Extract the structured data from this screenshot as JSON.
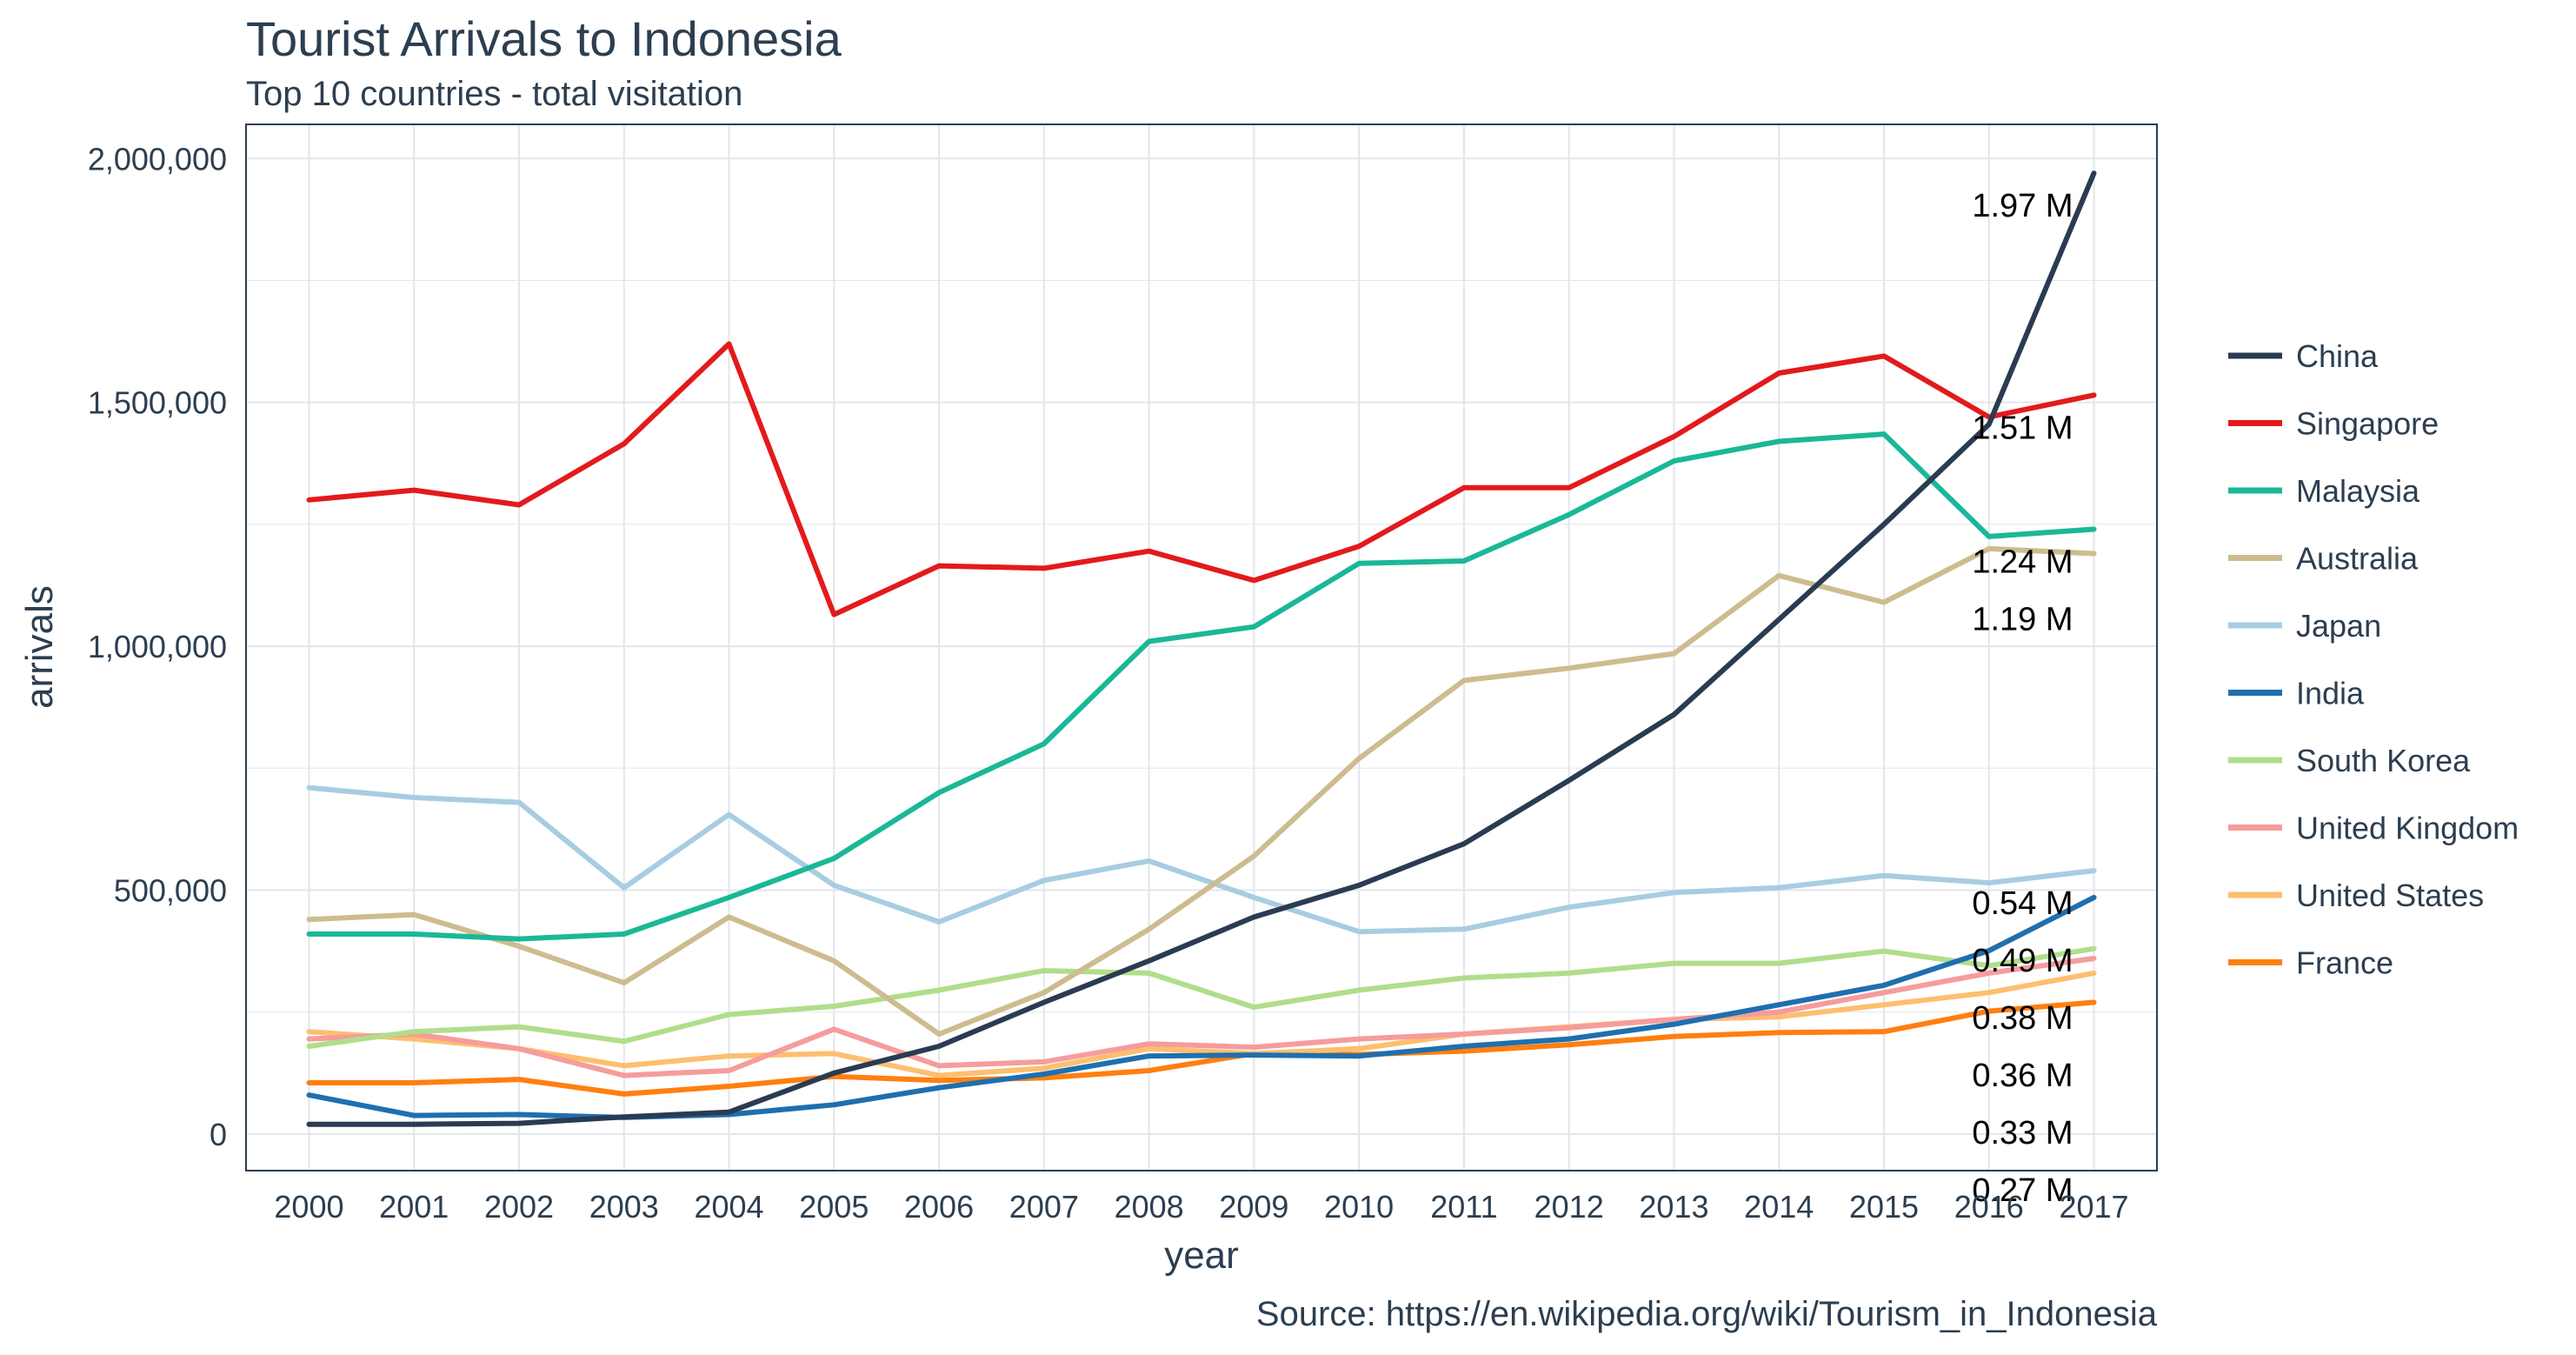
{
  "colors": {
    "text": "#2c3e50",
    "grid": "#e3e6ea",
    "panel_border": "#2c3e50",
    "end_label": "#000000"
  },
  "chart_data": {
    "type": "line",
    "title": "Tourist Arrivals to Indonesia",
    "subtitle": "Top 10 countries - total visitation",
    "xlabel": "year",
    "ylabel": "arrivals",
    "caption": "Source: https://en.wikipedia.org/wiki/Tourism_in_Indonesia",
    "x": [
      2000,
      2001,
      2002,
      2003,
      2004,
      2005,
      2006,
      2007,
      2008,
      2009,
      2010,
      2011,
      2012,
      2013,
      2014,
      2015,
      2016,
      2017
    ],
    "x_tick_labels": [
      "2000",
      "2001",
      "2002",
      "2003",
      "2004",
      "2005",
      "2006",
      "2007",
      "2008",
      "2009",
      "2010",
      "2011",
      "2012",
      "2013",
      "2014",
      "2015",
      "2016",
      "2017"
    ],
    "ylim": [
      -75000,
      2070000
    ],
    "y_ticks": [
      0,
      500000,
      1000000,
      1500000,
      2000000
    ],
    "y_tick_labels": [
      "0",
      "500,000",
      "1,000,000",
      "1,500,000",
      "2,000,000"
    ],
    "grid": true,
    "legend_position": "right",
    "series": [
      {
        "name": "China",
        "color": "#2a3b52",
        "values": [
          20000,
          20000,
          22000,
          35000,
          45000,
          125000,
          180000,
          270000,
          355000,
          445000,
          510000,
          595000,
          725000,
          860000,
          1055000,
          1250000,
          1455000,
          1970000
        ]
      },
      {
        "name": "Singapore",
        "color": "#e31a1c",
        "values": [
          1300000,
          1320000,
          1290000,
          1415000,
          1620000,
          1065000,
          1165000,
          1160000,
          1195000,
          1135000,
          1205000,
          1325000,
          1325000,
          1430000,
          1560000,
          1595000,
          1470000,
          1515000
        ]
      },
      {
        "name": "Malaysia",
        "color": "#1ab897",
        "values": [
          410000,
          410000,
          400000,
          410000,
          485000,
          565000,
          700000,
          800000,
          1010000,
          1040000,
          1170000,
          1175000,
          1270000,
          1380000,
          1420000,
          1435000,
          1225000,
          1240000
        ]
      },
      {
        "name": "Australia",
        "color": "#cdbc8f",
        "values": [
          440000,
          450000,
          385000,
          310000,
          445000,
          355000,
          205000,
          290000,
          420000,
          570000,
          770000,
          930000,
          955000,
          985000,
          1145000,
          1090000,
          1200000,
          1190000
        ]
      },
      {
        "name": "Japan",
        "color": "#a7cde2",
        "values": [
          710000,
          690000,
          680000,
          505000,
          655000,
          510000,
          435000,
          520000,
          560000,
          485000,
          415000,
          420000,
          465000,
          495000,
          505000,
          530000,
          515000,
          540000
        ]
      },
      {
        "name": "India",
        "color": "#1f6faf",
        "values": [
          80000,
          38000,
          40000,
          34000,
          40000,
          60000,
          95000,
          123000,
          160000,
          162000,
          160000,
          180000,
          195000,
          225000,
          265000,
          305000,
          376000,
          485000
        ]
      },
      {
        "name": "South Korea",
        "color": "#b0de8a",
        "values": [
          180000,
          210000,
          220000,
          190000,
          245000,
          262000,
          295000,
          335000,
          330000,
          260000,
          295000,
          320000,
          330000,
          350000,
          350000,
          375000,
          345000,
          380000
        ]
      },
      {
        "name": "United Kingdom",
        "color": "#f69c9c",
        "values": [
          195000,
          205000,
          175000,
          120000,
          130000,
          215000,
          140000,
          148000,
          185000,
          178000,
          195000,
          205000,
          218000,
          235000,
          250000,
          290000,
          330000,
          360000
        ]
      },
      {
        "name": "United States",
        "color": "#fdbf6f",
        "values": [
          210000,
          195000,
          175000,
          140000,
          160000,
          165000,
          120000,
          135000,
          175000,
          165000,
          175000,
          205000,
          220000,
          235000,
          240000,
          265000,
          290000,
          330000
        ]
      },
      {
        "name": "France",
        "color": "#ff7f0f",
        "values": [
          105000,
          105000,
          112000,
          82000,
          98000,
          118000,
          110000,
          115000,
          130000,
          165000,
          163000,
          170000,
          183000,
          200000,
          208000,
          210000,
          252000,
          270000
        ]
      }
    ],
    "end_labels": [
      "1.97 M",
      "1.51 M",
      "1.24 M",
      "1.19 M",
      "0.54 M",
      "0.49 M",
      "0.38 M",
      "0.36 M",
      "0.33 M",
      "0.27 M"
    ]
  }
}
